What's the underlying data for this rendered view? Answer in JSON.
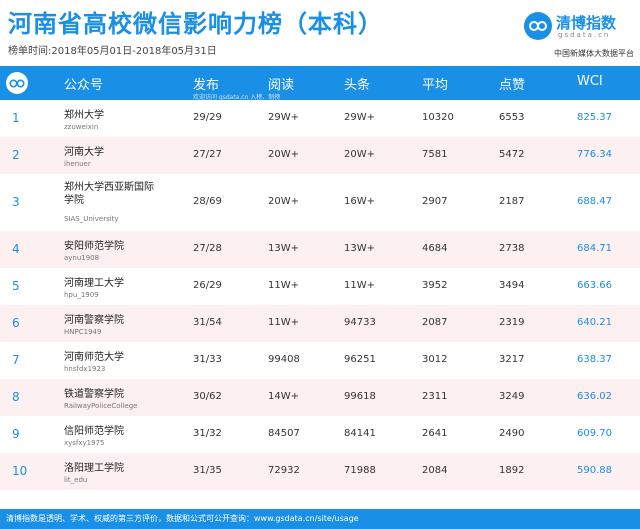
{
  "header": {
    "title": "河南省高校微信影响力榜（本科）",
    "period": "榜单时间:2018年05月01日-2018年05月31日"
  },
  "brand": {
    "name": "清博指数",
    "domain": "gsdata.cn",
    "tagline": "中国新媒体大数据平台",
    "icon": "qingbo-logo-icon"
  },
  "table": {
    "columns": [
      "公众号",
      "发布",
      "阅读",
      "头条",
      "平均",
      "点赞",
      "WCI"
    ],
    "note": "欢迎访问 gsdata.cn 入榜、制榜",
    "rows": [
      {
        "rank": "1",
        "name": "郑州大学",
        "account": "zzuweixin",
        "publish": "29/29",
        "read": "29W+",
        "headline": "29W+",
        "avg": "10320",
        "likes": "6553",
        "wci": "825.37"
      },
      {
        "rank": "2",
        "name": "河南大学",
        "account": "ihenuer",
        "publish": "27/27",
        "read": "20W+",
        "headline": "20W+",
        "avg": "7581",
        "likes": "5472",
        "wci": "776.34"
      },
      {
        "rank": "3",
        "name": "郑州大学西亚斯国际学院",
        "account": "SIAS_University",
        "publish": "28/69",
        "read": "20W+",
        "headline": "16W+",
        "avg": "2907",
        "likes": "2187",
        "wci": "688.47"
      },
      {
        "rank": "4",
        "name": "安阳师范学院",
        "account": "aynu1908",
        "publish": "27/28",
        "read": "13W+",
        "headline": "13W+",
        "avg": "4684",
        "likes": "2738",
        "wci": "684.71"
      },
      {
        "rank": "5",
        "name": "河南理工大学",
        "account": "hpu_1909",
        "publish": "26/29",
        "read": "11W+",
        "headline": "11W+",
        "avg": "3952",
        "likes": "3494",
        "wci": "663.66"
      },
      {
        "rank": "6",
        "name": "河南警察学院",
        "account": "HNPC1949",
        "publish": "31/54",
        "read": "11W+",
        "headline": "94733",
        "avg": "2087",
        "likes": "2319",
        "wci": "640.21"
      },
      {
        "rank": "7",
        "name": "河南师范大学",
        "account": "hnsfdx1923",
        "publish": "31/33",
        "read": "99408",
        "headline": "96251",
        "avg": "3012",
        "likes": "3217",
        "wci": "638.37"
      },
      {
        "rank": "8",
        "name": "铁道警察学院",
        "account": "RailwayPoliceCollege",
        "publish": "30/62",
        "read": "14W+",
        "headline": "99618",
        "avg": "2311",
        "likes": "3249",
        "wci": "636.02"
      },
      {
        "rank": "9",
        "name": "信阳师范学院",
        "account": "xysfxy1975",
        "publish": "31/32",
        "read": "84507",
        "headline": "84141",
        "avg": "2641",
        "likes": "2490",
        "wci": "609.70"
      },
      {
        "rank": "10",
        "name": "洛阳理工学院",
        "account": "lit_edu",
        "publish": "31/35",
        "read": "72932",
        "headline": "71988",
        "avg": "2084",
        "likes": "1892",
        "wci": "590.88"
      }
    ]
  },
  "footer": {
    "text": "清博指数是透明、学术、权威的第三方评价，数据和公式可公开查询：www.gsdata.cn/site/usage"
  },
  "colors": {
    "accent": "#1a8fe6",
    "alt_row": "#fdf0f0"
  }
}
